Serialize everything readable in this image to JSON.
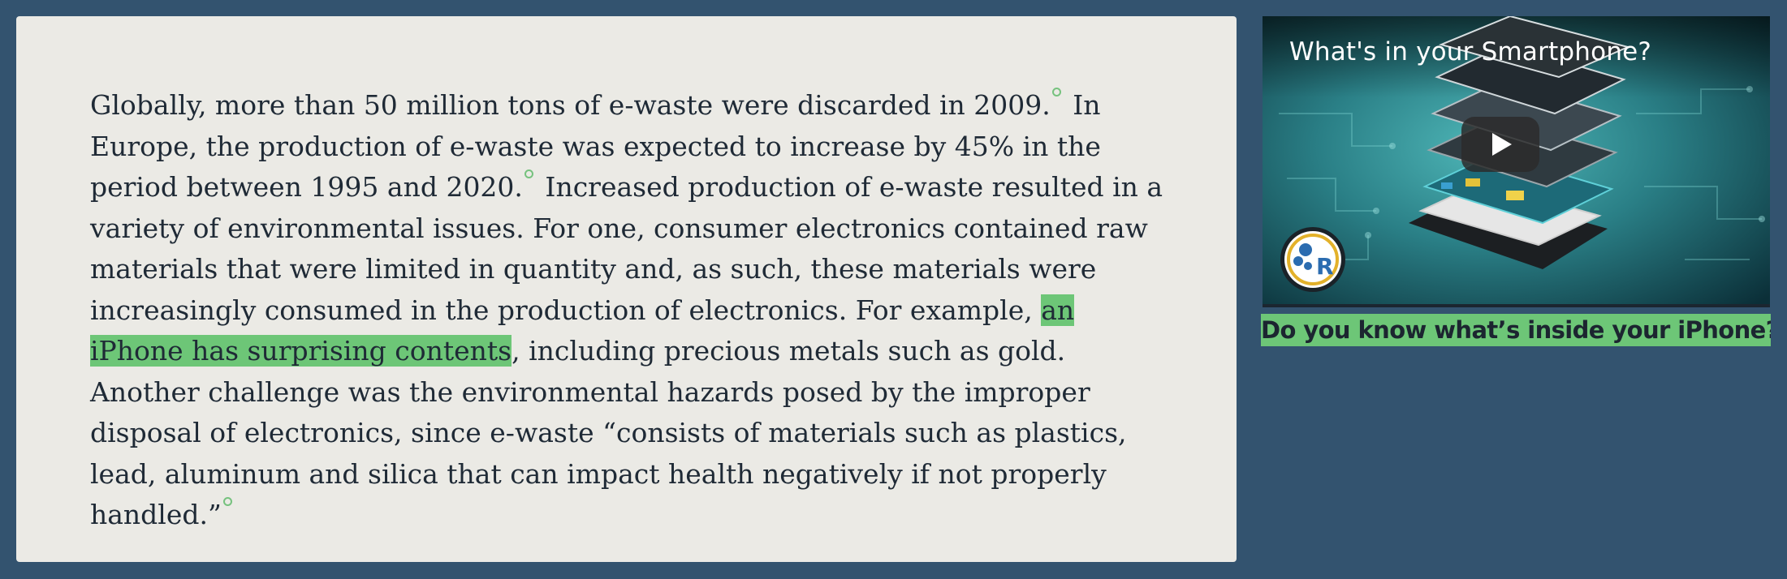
{
  "article": {
    "seg1": "Globally, more than 50 million tons of e-waste were discarded in 2009.",
    "seg2": " In Europe, the production of e-waste was expected to increase by 45% in the period between 1995 and 2020.",
    "seg3": " Increased production of e-waste resulted in a variety of environmen­tal issues. For one, consumer electronics contained raw materials that were limited in quantity and, as such, these materials were increasingly consumed in the produc­tion of electronics. For example, ",
    "link_text": "an iPhone has surprising contents",
    "seg4": ", including pre­cious metals such as gold. Another challenge was the environmental hazards posed by the improper disposal of electronics, since e-waste “consists of materials such as plastics, lead, aluminum and silica that can impact health negatively if not properly handled.”"
  },
  "video": {
    "title": "What's in your Smartphone?",
    "play_icon": "play-icon",
    "channel_icon": "channel-logo-icon"
  },
  "caption": {
    "text": "Do you know what’s inside your iPhone?"
  },
  "colors": {
    "background": "#33536f",
    "card": "#ebeae5",
    "highlight": "#6dc677",
    "text": "#1f2a36"
  }
}
